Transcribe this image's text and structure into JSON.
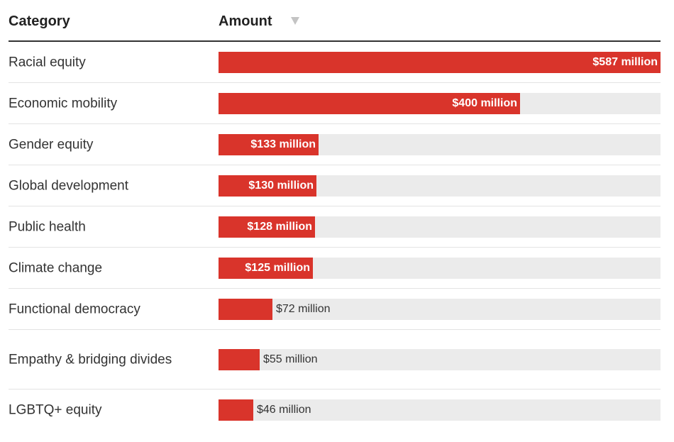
{
  "header": {
    "category_label": "Category",
    "amount_label": "Amount"
  },
  "colors": {
    "bar": "#d9342b",
    "track": "#ebebeb",
    "inside_label": "#ffffff",
    "outside_label": "#333333",
    "sort_icon": "#c4c4c4"
  },
  "chart_data": {
    "type": "bar",
    "orientation": "horizontal",
    "title": "",
    "xlabel": "Amount",
    "ylabel": "Category",
    "xlim": [
      0,
      587
    ],
    "unit": "million USD",
    "categories": [
      "Racial equity",
      "Economic mobility",
      "Gender equity",
      "Global development",
      "Public health",
      "Climate change",
      "Functional democracy",
      "Empathy & bridging divides",
      "LGBTQ+ equity"
    ],
    "values": [
      587,
      400,
      133,
      130,
      128,
      125,
      72,
      55,
      46
    ],
    "value_labels": [
      "$587 million",
      "$400 million",
      "$133 million",
      "$130 million",
      "$128 million",
      "$125 million",
      "$72 million",
      "$55 million",
      "$46 million"
    ]
  }
}
